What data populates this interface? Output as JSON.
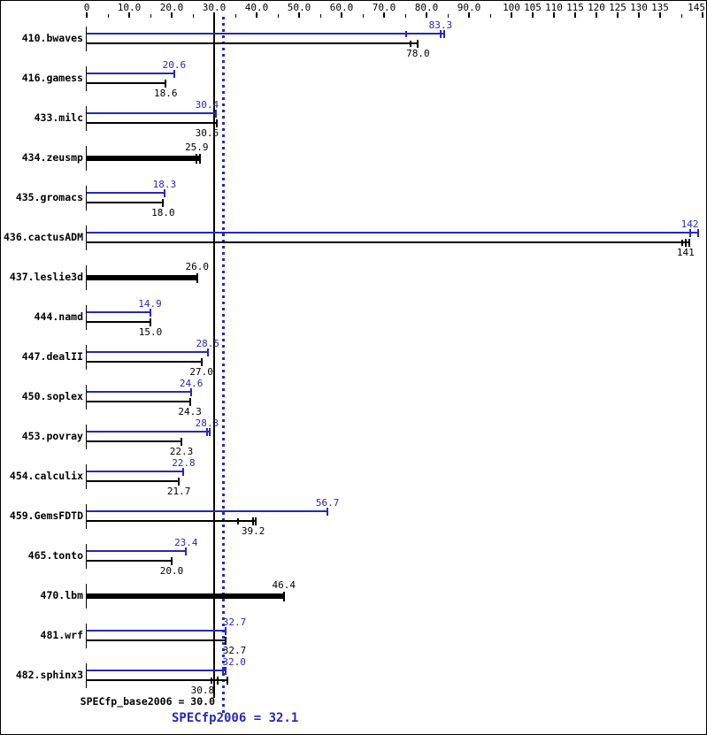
{
  "colors": {
    "peak_blue": "#2828b4",
    "base_black": "#000000",
    "background": "#ffffff",
    "border": "#000000"
  },
  "footer": {
    "base_label": "SPECfp_base2006 = 30.0",
    "peak_label": "SPECfp2006 = 32.1"
  },
  "chart_data": {
    "type": "bar",
    "orientation": "horizontal",
    "title": "",
    "value_axis": {
      "position": "top",
      "min": 0,
      "max": 145,
      "major_ticks": [
        {
          "v": 0,
          "label": "0"
        },
        {
          "v": 10,
          "label": "10.0"
        },
        {
          "v": 20,
          "label": "20.0"
        },
        {
          "v": 30,
          "label": "30.0"
        },
        {
          "v": 40,
          "label": "40.0"
        },
        {
          "v": 50,
          "label": "50.0"
        },
        {
          "v": 60,
          "label": "60.0"
        },
        {
          "v": 70,
          "label": "70.0"
        },
        {
          "v": 80,
          "label": "80.0"
        },
        {
          "v": 90,
          "label": "90.0"
        },
        {
          "v": 100,
          "label": "100"
        },
        {
          "v": 105,
          "label": "105"
        },
        {
          "v": 110,
          "label": "110"
        },
        {
          "v": 115,
          "label": "115"
        },
        {
          "v": 120,
          "label": "120"
        },
        {
          "v": 125,
          "label": "125"
        },
        {
          "v": 130,
          "label": "130"
        },
        {
          "v": 135,
          "label": "135"
        },
        {
          "v": 145,
          "label": "145"
        }
      ],
      "minor_ticks": [
        5,
        15,
        25,
        35,
        45,
        55,
        65,
        75,
        85,
        95,
        140
      ]
    },
    "reference_lines": [
      {
        "id": "base_mean",
        "value": 30.0,
        "style": "solid",
        "color": "#000000"
      },
      {
        "id": "peak_mean",
        "value": 32.1,
        "style": "dotted",
        "color": "#2828b4"
      }
    ],
    "benchmarks": [
      {
        "name": "410.bwaves",
        "peak": {
          "label": "83.3",
          "value": 83.3,
          "end": 84.2,
          "ticks": [
            75.2
          ]
        },
        "base": {
          "label": "78.0",
          "value": 78.0,
          "ticks": [
            76.3
          ]
        }
      },
      {
        "name": "416.gamess",
        "peak": {
          "label": "20.6",
          "value": 20.6
        },
        "base": {
          "label": "18.6",
          "value": 18.6
        }
      },
      {
        "name": "433.milc",
        "peak": {
          "label": "30.4",
          "value": 30.4,
          "label_dx": -10
        },
        "base": {
          "label": "30.6",
          "value": 30.6,
          "label_dx": -11
        }
      },
      {
        "name": "434.zeusmp",
        "single": {
          "label": "25.9",
          "value": 25.9,
          "end": 26.7
        }
      },
      {
        "name": "435.gromacs",
        "peak": {
          "label": "18.3",
          "value": 18.3
        },
        "base": {
          "label": "18.0",
          "value": 18.0
        }
      },
      {
        "name": "436.cactusADM",
        "peak": {
          "label": "142",
          "value": 142,
          "end": 143.9
        },
        "base": {
          "label": "141",
          "value": 141,
          "end": 141.9,
          "ticks": [
            140.2
          ]
        }
      },
      {
        "name": "437.leslie3d",
        "single": {
          "label": "26.0",
          "value": 26.0
        }
      },
      {
        "name": "444.namd",
        "peak": {
          "label": "14.9",
          "value": 14.9
        },
        "base": {
          "label": "15.0",
          "value": 15.0
        }
      },
      {
        "name": "447.dealII",
        "peak": {
          "label": "28.5",
          "value": 28.5
        },
        "base": {
          "label": "27.0",
          "value": 27.0
        }
      },
      {
        "name": "450.soplex",
        "peak": {
          "label": "24.6",
          "value": 24.6
        },
        "base": {
          "label": "24.3",
          "value": 24.3
        }
      },
      {
        "name": "453.povray",
        "peak": {
          "label": "28.3",
          "value": 28.3,
          "end": 28.9
        },
        "base": {
          "label": "22.3",
          "value": 22.3
        }
      },
      {
        "name": "454.calculix",
        "peak": {
          "label": "22.8",
          "value": 22.8
        },
        "base": {
          "label": "21.7",
          "value": 21.7
        }
      },
      {
        "name": "459.GemsFDTD",
        "peak": {
          "label": "56.7",
          "value": 56.7
        },
        "base": {
          "label": "39.2",
          "value": 39.2,
          "end": 39.8,
          "ticks": [
            35.6
          ]
        }
      },
      {
        "name": "465.tonto",
        "peak": {
          "label": "23.4",
          "value": 23.4
        },
        "base": {
          "label": "20.0",
          "value": 20.0
        }
      },
      {
        "name": "470.lbm",
        "single": {
          "label": "46.4",
          "value": 46.4
        }
      },
      {
        "name": "481.wrf",
        "peak": {
          "label": "32.7",
          "value": 32.7,
          "label_dx": 10
        },
        "base": {
          "label": "32.7",
          "value": 32.7,
          "label_dx": 10
        }
      },
      {
        "name": "482.sphinx3",
        "peak": {
          "label": "32.0",
          "value": 32.0,
          "end": 32.8,
          "label_dx": 13
        },
        "base": {
          "label": "30.8",
          "value": 30.8,
          "end": 33.2,
          "ticks": [
            29.4
          ],
          "label_dx": -17
        }
      }
    ]
  }
}
